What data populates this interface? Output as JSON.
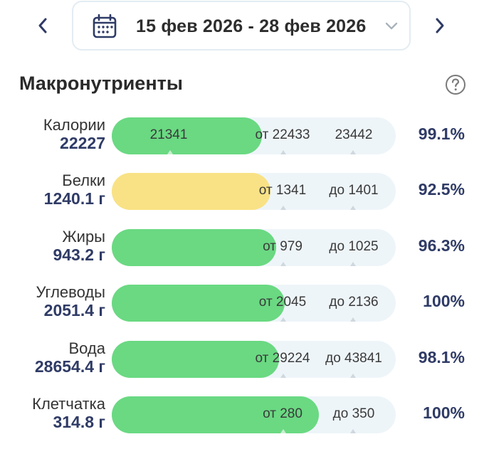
{
  "header": {
    "date_range": "15 фев 2026 - 28 фев 2026",
    "prev_icon": "chevron-left-icon",
    "next_icon": "chevron-right-icon",
    "calendar_icon": "calendar-icon",
    "accent_color": "#2f3b66"
  },
  "section": {
    "title": "Макронутриенты",
    "help_icon": "help-icon"
  },
  "colors": {
    "bar_green": "#6ad982",
    "bar_yellow": "#f9e285",
    "track": "#eef5f9"
  },
  "rows": [
    {
      "name": "Калории",
      "value": "22227",
      "percent": "99.1%",
      "fill_ratio": 0.53,
      "color": "green",
      "inner_label": "21341",
      "min_label": "от 22433",
      "max_label": "23442"
    },
    {
      "name": "Белки",
      "value": "1240.1 г",
      "percent": "92.5%",
      "fill_ratio": 0.56,
      "color": "yellow",
      "inner_label": "",
      "min_label": "от 1341",
      "max_label": "до 1401"
    },
    {
      "name": "Жиры",
      "value": "943.2 г",
      "percent": "96.3%",
      "fill_ratio": 0.58,
      "color": "green",
      "inner_label": "",
      "min_label": "от 979",
      "max_label": "до 1025"
    },
    {
      "name": "Углеводы",
      "value": "2051.4 г",
      "percent": "100%",
      "fill_ratio": 0.61,
      "color": "green",
      "inner_label": "",
      "min_label": "от 2045",
      "max_label": "до 2136"
    },
    {
      "name": "Вода",
      "value": "28654.4 г",
      "percent": "98.1%",
      "fill_ratio": 0.59,
      "color": "green",
      "inner_label": "",
      "min_label": "от 29224",
      "max_label": "до 43841"
    },
    {
      "name": "Клетчатка",
      "value": "314.8 г",
      "percent": "100%",
      "fill_ratio": 0.73,
      "color": "green",
      "inner_label": "",
      "min_label": "от 280",
      "max_label": "до 350"
    }
  ]
}
